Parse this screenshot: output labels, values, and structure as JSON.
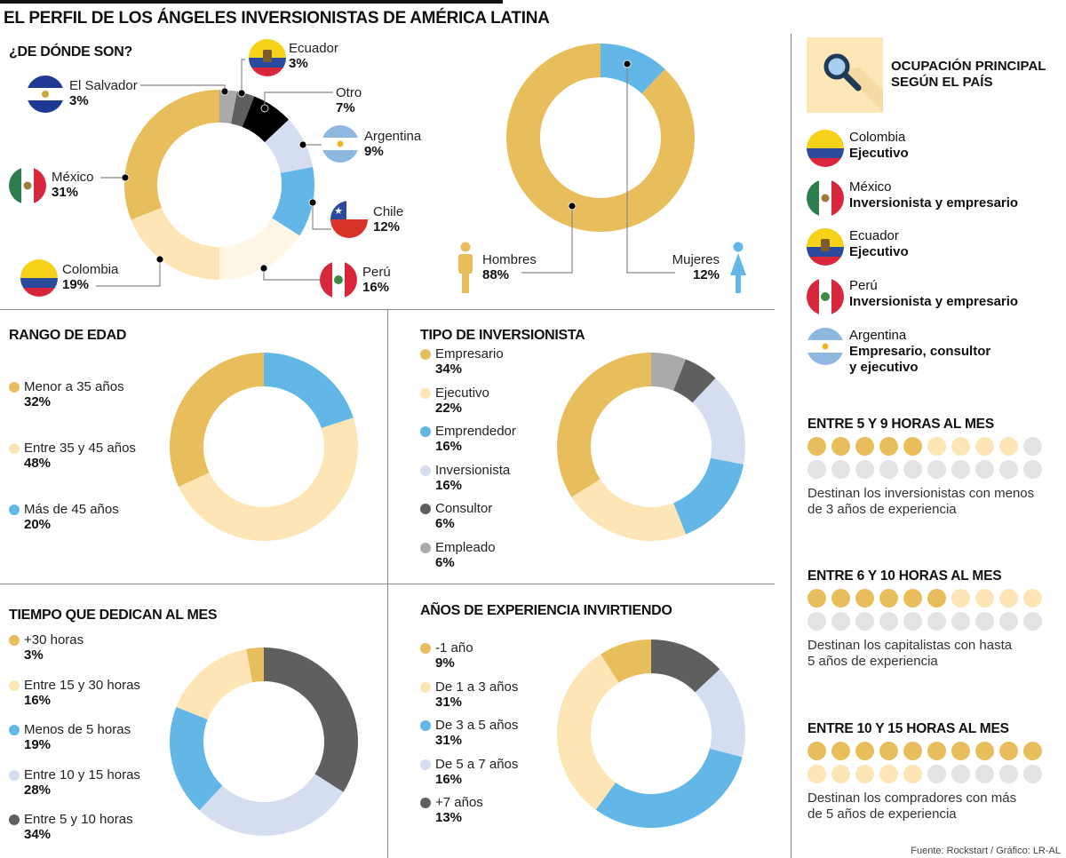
{
  "title": "EL PERFIL DE LOS ÁNGELES INVERSIONISTAS DE AMÉRICA LATINA",
  "colors": {
    "gold": "#e8bd5c",
    "cream": "#fde5b6",
    "pale_cream": "#fff6e6",
    "blue": "#63b7e7",
    "light_blue": "#d5def0",
    "dark_gray": "#5f5f5f",
    "gray": "#aaaaaa",
    "black": "#000000",
    "dot_gray": "#e3e3e3",
    "line": "#888888"
  },
  "chart_data": [
    {
      "id": "origin",
      "type": "pie",
      "title": "¿DE DÓNDE SON?",
      "donut": true,
      "slices": [
        {
          "label": "El Salvador",
          "value": 3,
          "pct": "3%",
          "color": "#aaaaaa"
        },
        {
          "label": "Ecuador",
          "value": 3,
          "pct": "3%",
          "color": "#5f5f5f"
        },
        {
          "label": "Otro",
          "value": 7,
          "pct": "7%",
          "color": "#000000"
        },
        {
          "label": "Argentina",
          "value": 9,
          "pct": "9%",
          "color": "#d5def0"
        },
        {
          "label": "Chile",
          "value": 12,
          "pct": "12%",
          "color": "#63b7e7"
        },
        {
          "label": "Perú",
          "value": 16,
          "pct": "16%",
          "color": "#fff6e6"
        },
        {
          "label": "Colombia",
          "value": 19,
          "pct": "19%",
          "color": "#fde5b6"
        },
        {
          "label": "México",
          "value": 31,
          "pct": "31%",
          "color": "#e8bd5c"
        }
      ]
    },
    {
      "id": "gender",
      "type": "pie",
      "title": "",
      "donut": true,
      "slices": [
        {
          "label": "Mujeres",
          "value": 12,
          "pct": "12%",
          "color": "#63b7e7"
        },
        {
          "label": "Hombres",
          "value": 88,
          "pct": "88%",
          "color": "#e8bd5c"
        }
      ]
    },
    {
      "id": "age",
      "type": "pie",
      "title": "RANGO DE EDAD",
      "donut": true,
      "slices": [
        {
          "label": "Más de 45 años",
          "value": 20,
          "pct": "20%",
          "color": "#63b7e7"
        },
        {
          "label": "Entre 35 y 45 años",
          "value": 48,
          "pct": "48%",
          "color": "#fde5b6"
        },
        {
          "label": "Menor a 35 años",
          "value": 32,
          "pct": "32%",
          "color": "#e8bd5c"
        }
      ],
      "legend": [
        {
          "label": "Menor a 35 años",
          "pct": "32%",
          "color": "#e8bd5c"
        },
        {
          "label": "Entre 35 y 45 años",
          "pct": "48%",
          "color": "#fde5b6"
        },
        {
          "label": "Más de 45 años",
          "pct": "20%",
          "color": "#63b7e7"
        }
      ]
    },
    {
      "id": "type",
      "type": "pie",
      "title": "TIPO DE INVERSIONISTA",
      "donut": true,
      "slices": [
        {
          "label": "Empleado",
          "value": 6,
          "pct": "6%",
          "color": "#aaaaaa"
        },
        {
          "label": "Consultor",
          "value": 6,
          "pct": "6%",
          "color": "#5f5f5f"
        },
        {
          "label": "Inversionista",
          "value": 16,
          "pct": "16%",
          "color": "#d5def0"
        },
        {
          "label": "Emprendedor",
          "value": 16,
          "pct": "16%",
          "color": "#63b7e7"
        },
        {
          "label": "Ejecutivo",
          "value": 22,
          "pct": "22%",
          "color": "#fde5b6"
        },
        {
          "label": "Empresario",
          "value": 34,
          "pct": "34%",
          "color": "#e8bd5c"
        }
      ],
      "legend": [
        {
          "label": "Empresario",
          "pct": "34%",
          "color": "#e8bd5c"
        },
        {
          "label": "Ejecutivo",
          "pct": "22%",
          "color": "#fde5b6"
        },
        {
          "label": "Emprendedor",
          "pct": "16%",
          "color": "#63b7e7"
        },
        {
          "label": "Inversionista",
          "pct": "16%",
          "color": "#d5def0"
        },
        {
          "label": "Consultor",
          "pct": "6%",
          "color": "#5f5f5f"
        },
        {
          "label": "Empleado",
          "pct": "6%",
          "color": "#aaaaaa"
        }
      ]
    },
    {
      "id": "time",
      "type": "pie",
      "title": "TIEMPO QUE DEDICAN AL MES",
      "donut": true,
      "slices": [
        {
          "label": "Entre 5 y 10 horas",
          "value": 34,
          "pct": "34%",
          "color": "#5f5f5f"
        },
        {
          "label": "Entre 10 y 15 horas",
          "value": 28,
          "pct": "28%",
          "color": "#d5def0"
        },
        {
          "label": "Menos de 5 horas",
          "value": 19,
          "pct": "19%",
          "color": "#63b7e7"
        },
        {
          "label": "Entre 15 y 30 horas",
          "value": 16,
          "pct": "16%",
          "color": "#fde5b6"
        },
        {
          "label": "+30 horas",
          "value": 3,
          "pct": "3%",
          "color": "#e8bd5c"
        }
      ],
      "legend": [
        {
          "label": "+30 horas",
          "pct": "3%",
          "color": "#e8bd5c"
        },
        {
          "label": "Entre 15 y 30 horas",
          "pct": "16%",
          "color": "#fde5b6"
        },
        {
          "label": "Menos de 5 horas",
          "pct": "19%",
          "color": "#63b7e7"
        },
        {
          "label": "Entre 10 y 15 horas",
          "pct": "28%",
          "color": "#d5def0"
        },
        {
          "label": "Entre 5 y 10 horas",
          "pct": "34%",
          "color": "#5f5f5f"
        }
      ]
    },
    {
      "id": "experience",
      "type": "pie",
      "title": "AÑOS DE EXPERIENCIA INVIRTIENDO",
      "donut": true,
      "slices": [
        {
          "label": "+7 años",
          "value": 13,
          "pct": "13%",
          "color": "#5f5f5f"
        },
        {
          "label": "De 5 a 7 años",
          "value": 16,
          "pct": "16%",
          "color": "#d5def0"
        },
        {
          "label": "De 3 a 5 años",
          "value": 31,
          "pct": "31%",
          "color": "#63b7e7"
        },
        {
          "label": "De 1 a 3 años",
          "value": 31,
          "pct": "31%",
          "color": "#fde5b6"
        },
        {
          "label": "-1 año",
          "value": 9,
          "pct": "9%",
          "color": "#e8bd5c"
        }
      ],
      "legend": [
        {
          "label": "-1 año",
          "pct": "9%",
          "color": "#e8bd5c"
        },
        {
          "label": "De 1 a 3 años",
          "pct": "31%",
          "color": "#fde5b6"
        },
        {
          "label": "De 3 a 5 años",
          "pct": "31%",
          "color": "#63b7e7"
        },
        {
          "label": "De 5 a 7 años",
          "pct": "16%",
          "color": "#d5def0"
        },
        {
          "label": "+7 años",
          "pct": "13%",
          "color": "#5f5f5f"
        }
      ]
    }
  ],
  "origin_labels": {
    "el_salvador": {
      "name": "El Salvador",
      "pct": "3%",
      "flag": "el-salvador-flag"
    },
    "ecuador": {
      "name": "Ecuador",
      "pct": "3%",
      "flag": "ecuador-flag"
    },
    "otro": {
      "name": "Otro",
      "pct": "7%"
    },
    "argentina": {
      "name": "Argentina",
      "pct": "9%",
      "flag": "argentina-flag"
    },
    "chile": {
      "name": "Chile",
      "pct": "12%",
      "flag": "chile-flag"
    },
    "peru": {
      "name": "Perú",
      "pct": "16%",
      "flag": "peru-flag"
    },
    "colombia": {
      "name": "Colombia",
      "pct": "19%",
      "flag": "colombia-flag"
    },
    "mexico": {
      "name": "México",
      "pct": "31%",
      "flag": "mexico-flag"
    }
  },
  "gender_labels": {
    "men": {
      "name": "Hombres",
      "pct": "88%",
      "icon": "man-icon"
    },
    "women": {
      "name": "Mujeres",
      "pct": "12%",
      "icon": "woman-icon"
    }
  },
  "occupation": {
    "title_line1": "OCUPACIÓN PRINCIPAL",
    "title_line2": "SEGÚN EL PAÍS",
    "icon": "magnifier-icon",
    "items": [
      {
        "country": "Colombia",
        "occupation": "Ejecutivo",
        "flag": "colombia-flag"
      },
      {
        "country": "México",
        "occupation": "Inversionista y empresario",
        "flag": "mexico-flag"
      },
      {
        "country": "Ecuador",
        "occupation": "Ejecutivo",
        "flag": "ecuador-flag"
      },
      {
        "country": "Perú",
        "occupation": "Inversionista y empresario",
        "flag": "peru-flag"
      },
      {
        "country": "Argentina",
        "occupation_line1": "Empresario, consultor",
        "occupation_line2": "y ejecutivo",
        "flag": "argentina-flag"
      }
    ]
  },
  "hours": [
    {
      "title": "ENTRE 5 Y 9 HORAS AL MES",
      "gold_dots": 5,
      "cream_dots": 4,
      "total_dots": 20,
      "desc_line1": "Destinan los inversionistas con menos",
      "desc_line2": "de 3 años de experiencia"
    },
    {
      "title": "ENTRE 6 Y 10 HORAS AL MES",
      "gold_dots": 6,
      "cream_dots": 4,
      "total_dots": 20,
      "desc_line1": "Destinan los capitalistas con hasta",
      "desc_line2": "5 años de experiencia"
    },
    {
      "title": "ENTRE 10 Y 15 HORAS AL MES",
      "gold_dots": 10,
      "cream_dots": 5,
      "total_dots": 20,
      "desc_line1": "Destinan los compradores con más",
      "desc_line2": "de 5 años de experiencia"
    }
  ],
  "source": "Fuente: Rockstart / Gráfico: LR-AL"
}
